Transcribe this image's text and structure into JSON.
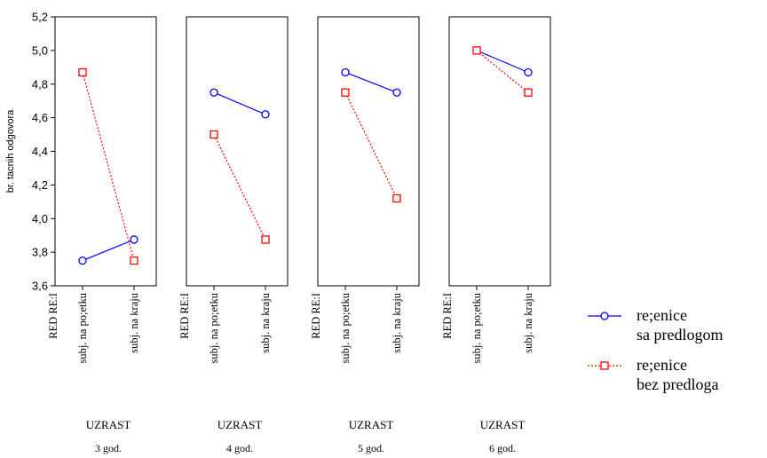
{
  "chart_data": {
    "type": "line",
    "ylabel": "br. tacnih odgovora",
    "ylim": [
      3.6,
      5.2
    ],
    "yticks": [
      "3,6",
      "3,8",
      "4,0",
      "4,2",
      "4,4",
      "4,6",
      "4,8",
      "5,0",
      "5,2"
    ],
    "ytick_values": [
      3.6,
      3.8,
      4.0,
      4.2,
      4.4,
      4.6,
      4.8,
      5.0,
      5.2
    ],
    "grid": false,
    "legend_position": "right",
    "category_factor_label": "RED RE:I",
    "categories": [
      "subj. na po;etku",
      "subj. na kraju"
    ],
    "panel_factor_label": "UZRAST",
    "panels": [
      {
        "label": "3 god.",
        "series": [
          {
            "name": "re;enice sa predlogom",
            "values": [
              3.75,
              3.875
            ]
          },
          {
            "name": "re;enice bez predloga",
            "values": [
              4.87,
              3.75
            ]
          }
        ]
      },
      {
        "label": "4 god.",
        "series": [
          {
            "name": "re;enice sa predlogom",
            "values": [
              4.75,
              4.62
            ]
          },
          {
            "name": "re;enice bez predloga",
            "values": [
              4.5,
              3.875
            ]
          }
        ]
      },
      {
        "label": "5 god.",
        "series": [
          {
            "name": "re;enice sa predlogom",
            "values": [
              4.87,
              4.75
            ]
          },
          {
            "name": "re;enice bez predloga",
            "values": [
              4.75,
              4.12
            ]
          }
        ]
      },
      {
        "label": "6 god.",
        "series": [
          {
            "name": "re;enice sa predlogom",
            "values": [
              5.0,
              4.87
            ]
          },
          {
            "name": "re;enice bez predloga",
            "values": [
              5.0,
              4.75
            ]
          }
        ]
      }
    ],
    "legend": [
      {
        "line1": "re;enice",
        "line2": "sa predlogom",
        "color": "#0000ff",
        "marker": "circle",
        "dash": "solid"
      },
      {
        "line1": "re;enice",
        "line2": "bez predloga",
        "color": "#ff0000",
        "marker": "square",
        "dash": "dotted"
      }
    ]
  }
}
